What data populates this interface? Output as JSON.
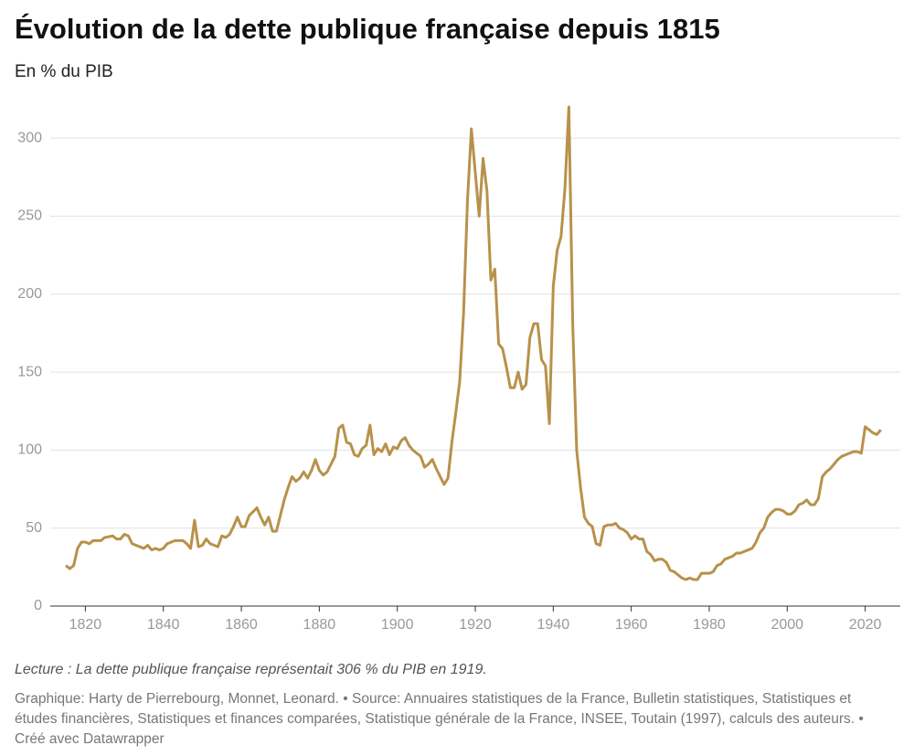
{
  "chart_data": {
    "type": "line",
    "title": "Évolution de la dette publique française depuis 1815",
    "subtitle": "En % du PIB",
    "note": "Lecture : La dette publique française représentait 306 % du PIB en 1919.",
    "source": "Graphique: Harty de Pierrebourg, Monnet, Leonard. • Source: Annuaires statistiques de la France, Bulletin statistiques, Statistiques et études financières, Statistiques et finances comparées, Statistique générale de la France, INSEE, Toutain (1997), calculs des auteurs. • Créé avec Datawrapper",
    "color": "#b8914a",
    "grid": true,
    "xlim": [
      1811,
      2029
    ],
    "ylim": [
      0,
      320
    ],
    "xticks": [
      1820,
      1840,
      1860,
      1880,
      1900,
      1920,
      1940,
      1960,
      1980,
      2000,
      2020
    ],
    "yticks": [
      0,
      50,
      100,
      150,
      200,
      250,
      300
    ],
    "x": [
      1815,
      1816,
      1817,
      1818,
      1819,
      1820,
      1821,
      1822,
      1824,
      1825,
      1827,
      1828,
      1829,
      1830,
      1831,
      1832,
      1833,
      1835,
      1836,
      1837,
      1838,
      1839,
      1840,
      1841,
      1843,
      1845,
      1846,
      1847,
      1848,
      1849,
      1850,
      1851,
      1852,
      1854,
      1855,
      1856,
      1857,
      1858,
      1859,
      1860,
      1861,
      1862,
      1864,
      1865,
      1866,
      1867,
      1868,
      1869,
      1870,
      1871,
      1872,
      1873,
      1874,
      1875,
      1876,
      1877,
      1878,
      1879,
      1880,
      1881,
      1882,
      1883,
      1884,
      1885,
      1886,
      1887,
      1888,
      1889,
      1890,
      1891,
      1892,
      1893,
      1894,
      1895,
      1896,
      1897,
      1898,
      1899,
      1900,
      1901,
      1902,
      1903,
      1904,
      1905,
      1906,
      1907,
      1908,
      1909,
      1910,
      1911,
      1912,
      1913,
      1914,
      1915,
      1916,
      1917,
      1918,
      1919,
      1920,
      1921,
      1922,
      1923,
      1924,
      1925,
      1926,
      1927,
      1928,
      1929,
      1930,
      1931,
      1932,
      1933,
      1934,
      1935,
      1936,
      1937,
      1938,
      1939,
      1940,
      1941,
      1942,
      1943,
      1944,
      1945,
      1946,
      1947,
      1948,
      1949,
      1950,
      1951,
      1952,
      1953,
      1954,
      1955,
      1956,
      1957,
      1958,
      1959,
      1960,
      1961,
      1962,
      1963,
      1964,
      1965,
      1966,
      1967,
      1968,
      1969,
      1970,
      1971,
      1972,
      1973,
      1974,
      1975,
      1976,
      1977,
      1978,
      1979,
      1980,
      1981,
      1982,
      1983,
      1984,
      1985,
      1986,
      1987,
      1988,
      1989,
      1990,
      1991,
      1992,
      1993,
      1994,
      1995,
      1996,
      1997,
      1998,
      1999,
      2000,
      2001,
      2002,
      2003,
      2004,
      2005,
      2006,
      2007,
      2008,
      2009,
      2010,
      2011,
      2012,
      2013,
      2014,
      2015,
      2016,
      2017,
      2018,
      2019,
      2020,
      2021,
      2022,
      2023,
      2024
    ],
    "values": [
      26,
      24,
      26,
      37,
      41,
      41,
      40,
      42,
      42,
      44,
      45,
      43,
      43,
      46,
      45,
      40,
      39,
      37,
      39,
      36,
      37,
      36,
      37,
      40,
      42,
      42,
      40,
      37,
      55,
      38,
      39,
      43,
      40,
      38,
      45,
      44,
      46,
      51,
      57,
      51,
      51,
      58,
      63,
      57,
      52,
      57,
      48,
      48,
      58,
      68,
      76,
      83,
      80,
      82,
      86,
      82,
      87,
      94,
      87,
      84,
      86,
      91,
      96,
      114,
      116,
      105,
      104,
      97,
      96,
      101,
      103,
      116,
      97,
      101,
      99,
      104,
      97,
      102,
      101,
      106,
      108,
      103,
      100,
      98,
      96,
      89,
      91,
      94,
      88,
      83,
      78,
      82,
      105,
      124,
      144,
      188,
      260,
      306,
      278,
      250,
      287,
      266,
      209,
      216,
      168,
      165,
      153,
      140,
      140,
      150,
      139,
      142,
      172,
      181,
      181,
      158,
      154,
      117,
      205,
      228,
      237,
      268,
      320,
      180,
      100,
      76,
      57,
      53,
      51,
      40,
      39,
      51,
      52,
      52,
      53,
      50,
      49,
      47,
      43,
      45,
      43,
      43,
      35,
      33,
      29,
      30,
      30,
      28,
      23,
      22,
      20,
      18,
      17,
      18,
      17,
      17,
      21,
      21,
      21,
      22,
      26,
      27,
      30,
      31,
      32,
      34,
      34,
      35,
      36,
      37,
      41,
      47,
      50,
      57,
      60,
      62,
      62,
      61,
      59,
      59,
      61,
      65,
      66,
      68,
      65,
      65,
      69,
      83,
      86,
      88,
      91,
      94,
      96,
      97,
      98,
      99,
      99,
      98,
      115,
      113,
      111,
      110,
      113
    ]
  }
}
